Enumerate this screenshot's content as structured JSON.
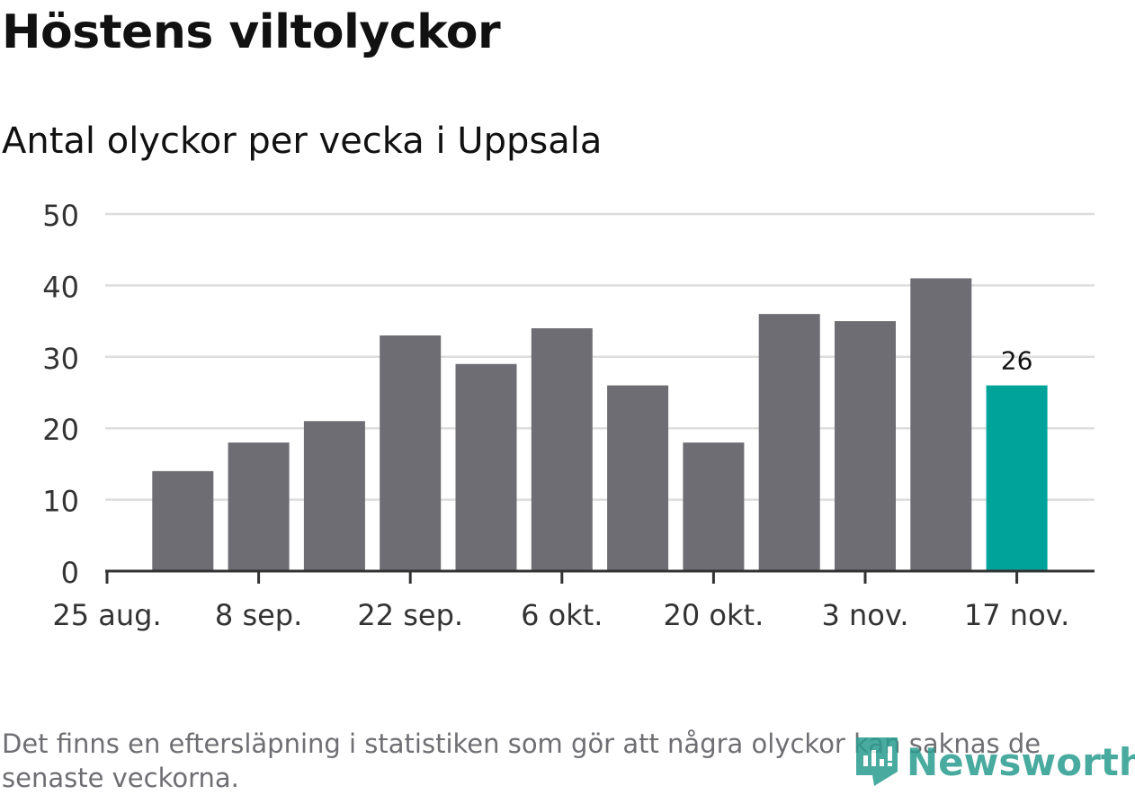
{
  "chart_data": {
    "type": "bar",
    "title": "Höstens viltolyckor",
    "subtitle": "Antal olyckor per vecka i Uppsala",
    "xlabel": "",
    "ylabel": "",
    "ylim": [
      0,
      50
    ],
    "yticks": [
      0,
      10,
      20,
      30,
      40,
      50
    ],
    "grid": true,
    "xtick_labels": [
      "25 aug.",
      "8 sep.",
      "22 sep.",
      "6 okt.",
      "20 okt.",
      "3 nov.",
      "17 nov."
    ],
    "categories": [
      "1 sep.",
      "8 sep.",
      "15 sep.",
      "22 sep.",
      "29 sep.",
      "6 okt.",
      "13 okt.",
      "20 okt.",
      "27 okt.",
      "3 nov.",
      "10 nov.",
      "17 nov."
    ],
    "values": [
      14,
      18,
      21,
      33,
      29,
      34,
      26,
      18,
      36,
      35,
      41,
      26
    ],
    "highlight_index": 11,
    "highlight_label": "26",
    "colors": {
      "bar": "#6e6d73",
      "highlight": "#00a39a",
      "grid": "#dddddd",
      "axis": "#333333"
    }
  },
  "note": "Det finns en eftersläpning i statistiken som gör att några olyckor kan saknas de senaste veckorna.",
  "logo": {
    "text": "Newsworthy",
    "color": "#2a9d8f"
  }
}
